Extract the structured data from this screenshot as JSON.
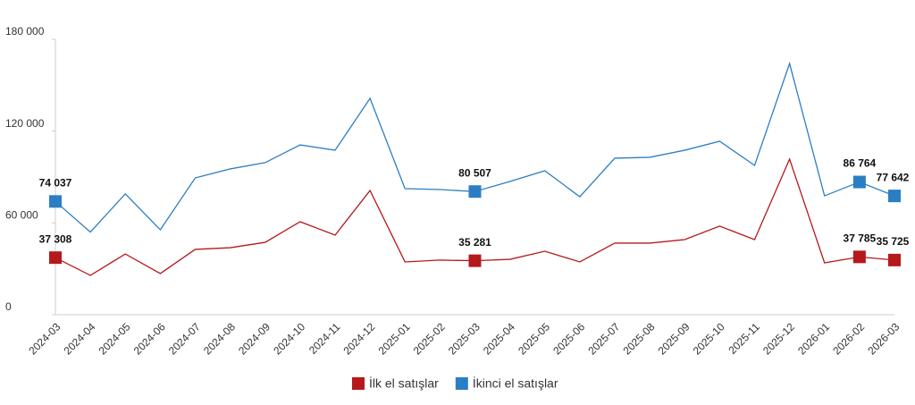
{
  "chart_data": {
    "type": "line",
    "x": [
      "2024-03",
      "2024-04",
      "2024-05",
      "2024-06",
      "2024-07",
      "2024-08",
      "2024-09",
      "2024-10",
      "2024-11",
      "2024-12",
      "2025-01",
      "2025-02",
      "2025-03",
      "2025-04",
      "2025-05",
      "2025-06",
      "2025-07",
      "2025-08",
      "2025-09",
      "2025-10",
      "2025-11",
      "2025-12",
      "2026-01",
      "2026-02",
      "2026-03"
    ],
    "series": [
      {
        "name": "İlk el satışlar",
        "color": "#b5191c",
        "values": [
          37308,
          25700,
          39700,
          26900,
          42700,
          43800,
          47300,
          60800,
          52000,
          81200,
          34500,
          35700,
          35281,
          36200,
          41500,
          34500,
          46800,
          46800,
          49100,
          57900,
          49100,
          101700,
          33900,
          37785,
          35725
        ],
        "value_labels": [
          "37 308",
          null,
          null,
          null,
          null,
          null,
          null,
          null,
          null,
          null,
          null,
          null,
          "35 281",
          null,
          null,
          null,
          null,
          null,
          null,
          null,
          null,
          null,
          null,
          "37 785",
          "35 725"
        ]
      },
      {
        "name": "İkinci el satışlar",
        "color": "#2b7ec4",
        "values": [
          74037,
          54000,
          79000,
          55500,
          89400,
          95300,
          99400,
          111000,
          107500,
          141400,
          82400,
          81800,
          80507,
          87100,
          94100,
          77100,
          102300,
          102900,
          107500,
          113400,
          97600,
          164200,
          77700,
          86764,
          77642
        ],
        "value_labels": [
          "74 037",
          null,
          null,
          null,
          null,
          null,
          null,
          null,
          null,
          null,
          null,
          null,
          "80 507",
          null,
          null,
          null,
          null,
          null,
          null,
          null,
          null,
          null,
          null,
          "86 764",
          "77 642"
        ]
      }
    ],
    "ylim": [
      0,
      180000
    ],
    "yticks": [
      0,
      {
        "value": 60000,
        "label": "60 000"
      },
      {
        "value": 120000,
        "label": "120 000"
      },
      {
        "value": 180000,
        "label": "180 000"
      }
    ],
    "grid": false,
    "legend": "bottom"
  }
}
